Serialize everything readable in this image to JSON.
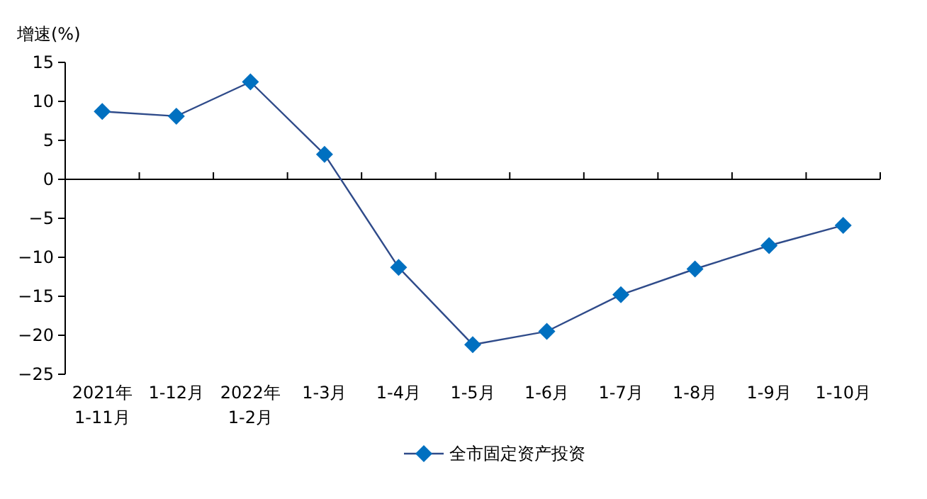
{
  "chart_data": {
    "type": "line",
    "ylabel": "增速(%)",
    "categories": [
      "2021年\n1-11月",
      "1-12月",
      "2022年\n1-2月",
      "1-3月",
      "1-4月",
      "1-5月",
      "1-6月",
      "1-7月",
      "1-8月",
      "1-9月",
      "1-10月"
    ],
    "series": [
      {
        "name": "全市固定资产投资",
        "color": "#0070c0",
        "values": [
          8.7,
          8.1,
          12.5,
          3.2,
          -11.3,
          -21.2,
          -19.5,
          -14.8,
          -11.5,
          -8.5,
          -5.9
        ]
      }
    ],
    "ylim": [
      -25,
      15
    ],
    "yticks": [
      -25,
      -20,
      -15,
      -10,
      -5,
      0,
      5,
      10,
      15
    ],
    "legend": "bottom",
    "marker": "diamond",
    "line_style": "solid"
  }
}
